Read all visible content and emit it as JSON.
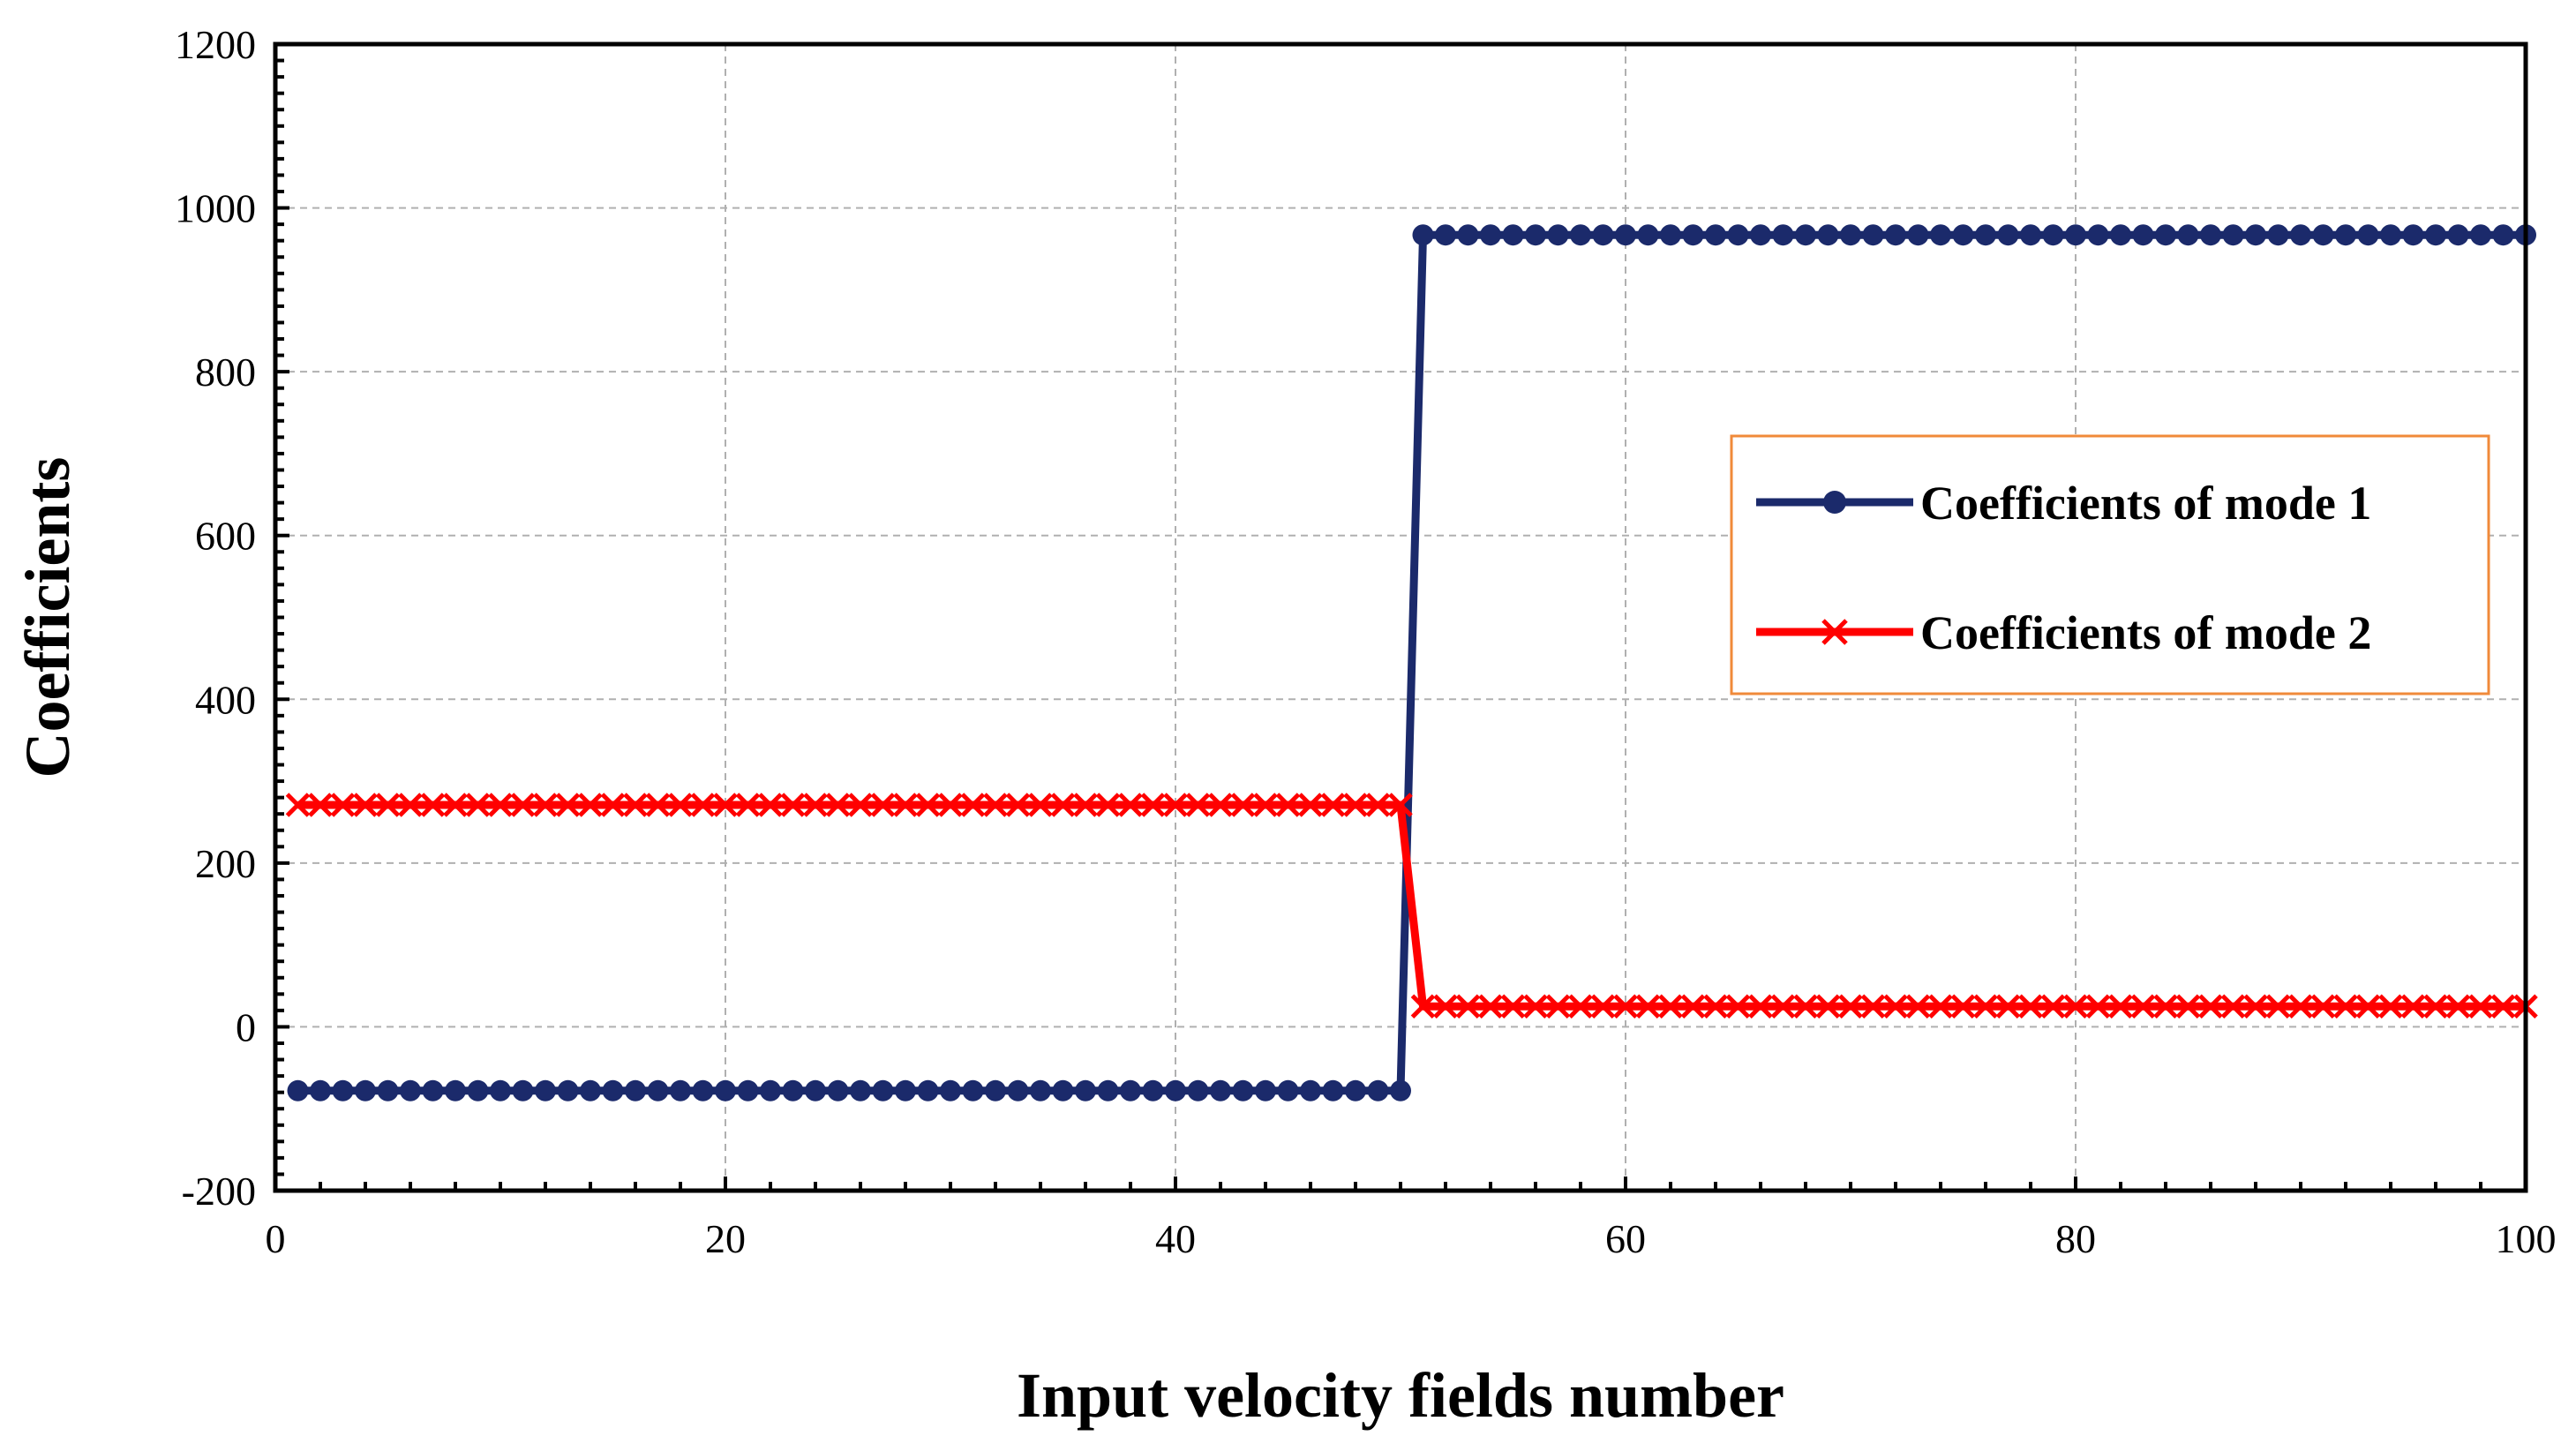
{
  "chart_data": {
    "type": "line",
    "title": "",
    "xlabel": "Input velocity fields number",
    "ylabel": "Coefficients",
    "xlim": [
      0,
      100
    ],
    "ylim": [
      -200,
      1200
    ],
    "xticks": [
      0,
      20,
      40,
      60,
      80,
      100
    ],
    "yticks": [
      -200,
      0,
      200,
      400,
      600,
      800,
      1000,
      1200
    ],
    "grid": true,
    "legend_position": "right",
    "x": [
      1,
      2,
      3,
      4,
      5,
      6,
      7,
      8,
      9,
      10,
      11,
      12,
      13,
      14,
      15,
      16,
      17,
      18,
      19,
      20,
      21,
      22,
      23,
      24,
      25,
      26,
      27,
      28,
      29,
      30,
      31,
      32,
      33,
      34,
      35,
      36,
      37,
      38,
      39,
      40,
      41,
      42,
      43,
      44,
      45,
      46,
      47,
      48,
      49,
      50,
      51,
      52,
      53,
      54,
      55,
      56,
      57,
      58,
      59,
      60,
      61,
      62,
      63,
      64,
      65,
      66,
      67,
      68,
      69,
      70,
      71,
      72,
      73,
      74,
      75,
      76,
      77,
      78,
      79,
      80,
      81,
      82,
      83,
      84,
      85,
      86,
      87,
      88,
      89,
      90,
      91,
      92,
      93,
      94,
      95,
      96,
      97,
      98,
      99,
      100
    ],
    "series": [
      {
        "name": "Coefficients of mode 1",
        "color": "#1b2a6b",
        "marker": "circle",
        "segments": [
          {
            "x_start": 1,
            "x_end": 50,
            "value": -78
          },
          {
            "x_start": 51,
            "x_end": 100,
            "value": 967
          }
        ]
      },
      {
        "name": "Coefficients of mode 2",
        "color": "#ff0000",
        "marker": "x",
        "segments": [
          {
            "x_start": 1,
            "x_end": 50,
            "value": 271
          },
          {
            "x_start": 51,
            "x_end": 100,
            "value": 25
          }
        ]
      }
    ],
    "legend_border_color": "#f08a3a"
  }
}
